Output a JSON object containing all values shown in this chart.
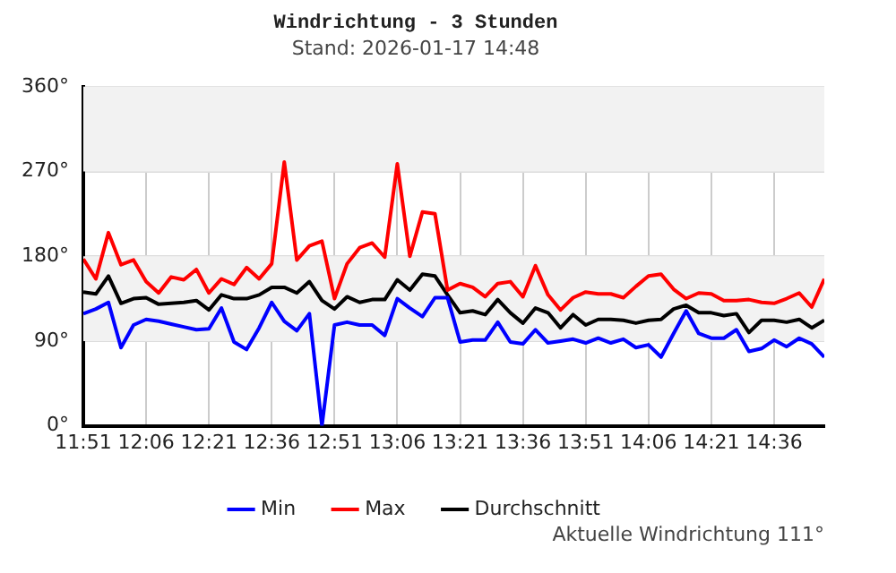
{
  "chart_data": {
    "type": "line",
    "title": "Windrichtung - 3 Stunden",
    "subtitle": "Stand: 2026-01-17 14:48",
    "x": [
      11.85,
      11.9,
      11.95,
      12.0,
      12.05,
      12.1,
      12.15,
      12.2,
      12.25,
      12.3,
      12.35,
      12.4,
      12.45,
      12.5,
      12.55,
      12.6,
      12.65,
      12.7,
      12.75,
      12.8,
      12.85,
      12.9,
      12.95,
      13.0,
      13.05,
      13.1,
      13.15,
      13.2,
      13.25,
      13.3,
      13.35,
      13.4,
      13.45,
      13.5,
      13.55,
      13.6,
      13.65,
      13.7,
      13.75,
      13.8,
      13.85,
      13.9,
      13.95,
      14.0,
      14.05,
      14.1,
      14.15,
      14.2,
      14.25,
      14.3,
      14.35,
      14.4,
      14.45,
      14.5,
      14.55,
      14.6,
      14.65,
      14.7,
      14.75,
      14.8
    ],
    "series": [
      {
        "name": "Min",
        "color": "#0000ff",
        "values": [
          119,
          124,
          131,
          83,
          107,
          113,
          111,
          108,
          105,
          102,
          103,
          125,
          89,
          81,
          104,
          131,
          111,
          101,
          119,
          0,
          107,
          110,
          107,
          107,
          96,
          135,
          125,
          116,
          136,
          136,
          89,
          91,
          91,
          110,
          89,
          87,
          102,
          88,
          90,
          92,
          88,
          93,
          88,
          92,
          83,
          86,
          73,
          98,
          122,
          98,
          93,
          93,
          102,
          79,
          82,
          91,
          84,
          93,
          87,
          73
        ]
      },
      {
        "name": "Max",
        "color": "#ff0000",
        "values": [
          177,
          156,
          205,
          171,
          176,
          153,
          141,
          158,
          155,
          166,
          141,
          156,
          150,
          168,
          156,
          172,
          280,
          176,
          191,
          196,
          135,
          172,
          189,
          194,
          179,
          278,
          180,
          227,
          225,
          144,
          151,
          147,
          137,
          151,
          153,
          137,
          170,
          139,
          123,
          136,
          142,
          140,
          140,
          136,
          148,
          159,
          161,
          145,
          135,
          141,
          140,
          133,
          133,
          134,
          131,
          130,
          135,
          141,
          126,
          156
        ]
      },
      {
        "name": "Durchschnitt",
        "color": "#000000",
        "values": [
          142,
          140,
          159,
          130,
          135,
          136,
          129,
          130,
          131,
          133,
          123,
          139,
          135,
          135,
          139,
          147,
          147,
          141,
          153,
          133,
          124,
          137,
          131,
          134,
          134,
          155,
          144,
          161,
          159,
          139,
          120,
          122,
          118,
          134,
          120,
          109,
          125,
          120,
          104,
          118,
          107,
          113,
          113,
          112,
          109,
          112,
          113,
          124,
          128,
          120,
          120,
          117,
          119,
          99,
          112,
          112,
          110,
          113,
          104,
          112
        ]
      }
    ],
    "xlim": [
      11.85,
      14.8
    ],
    "xticks": [
      {
        "value": 11.85,
        "label": "11:51"
      },
      {
        "value": 12.1,
        "label": "12:06"
      },
      {
        "value": 12.35,
        "label": "12:21"
      },
      {
        "value": 12.6,
        "label": "12:36"
      },
      {
        "value": 12.85,
        "label": "12:51"
      },
      {
        "value": 13.1,
        "label": "13:06"
      },
      {
        "value": 13.35,
        "label": "13:21"
      },
      {
        "value": 13.6,
        "label": "13:36"
      },
      {
        "value": 13.85,
        "label": "13:51"
      },
      {
        "value": 14.1,
        "label": "14:06"
      },
      {
        "value": 14.35,
        "label": "14:21"
      },
      {
        "value": 14.6,
        "label": "14:36"
      }
    ],
    "ylim": [
      0,
      360
    ],
    "yticks": [
      {
        "value": 0,
        "label": "0°"
      },
      {
        "value": 90,
        "label": "90°"
      },
      {
        "value": 180,
        "label": "180°"
      },
      {
        "value": 270,
        "label": "270°"
      },
      {
        "value": 360,
        "label": "360°"
      }
    ],
    "bands": [
      {
        "axis": "y",
        "from": 90,
        "to": 180,
        "color": "#f2f2f2"
      },
      {
        "axis": "y",
        "from": 270,
        "to": 360,
        "color": "#f2f2f2"
      }
    ],
    "grid": true,
    "legend": "bottom",
    "marker": "none",
    "line_style": "solid",
    "annotations": [
      "Aktuelle Windrichtung 111°"
    ]
  }
}
